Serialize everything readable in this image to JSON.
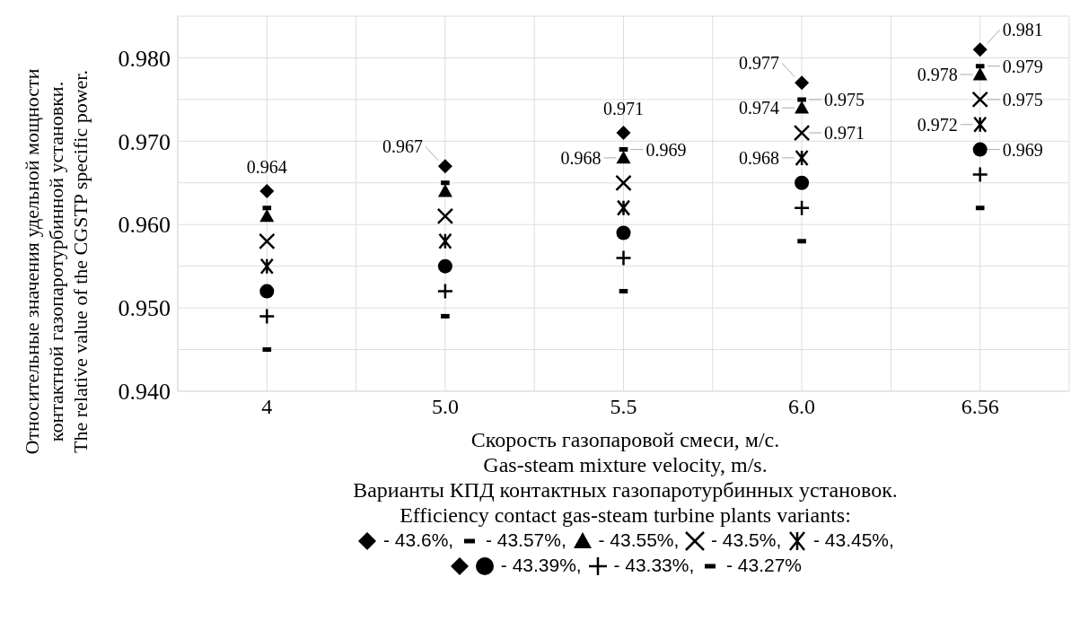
{
  "chart_data": {
    "type": "scatter",
    "ylabel": "Относительные значения удельной мощности\nконтактной газопаротурбинной установки.\nThe relative value of the CGSTP specific power.",
    "xlabel": "Скорость газопаровой смеси, м/с.\nGas-steam mixture velocity, m/s.",
    "legend_title": "Варианты КПД контактных газопаротурбинных установок.\nEfficiency contact gas-steam turbine plants variants:",
    "categories": [
      "4",
      "5.0",
      "5.5",
      "6.0",
      "6.56"
    ],
    "ylim": [
      0.94,
      0.985
    ],
    "yticks": [
      {
        "value": 0.94,
        "label": "0.940"
      },
      {
        "value": 0.945,
        "label": null
      },
      {
        "value": 0.95,
        "label": "0.950"
      },
      {
        "value": 0.955,
        "label": null
      },
      {
        "value": 0.96,
        "label": "0.960"
      },
      {
        "value": 0.965,
        "label": null
      },
      {
        "value": 0.97,
        "label": "0.970"
      },
      {
        "value": 0.975,
        "label": null
      },
      {
        "value": 0.98,
        "label": "0.980"
      },
      {
        "value": 0.985,
        "label": null
      }
    ],
    "grid": true,
    "legend": "bottom",
    "series": [
      {
        "name": "- 43.6%,",
        "color": "#000000",
        "marker": "diamond",
        "values": [
          0.964,
          0.967,
          0.971,
          0.977,
          0.981
        ],
        "value_labels": [
          "0.964",
          "0.967",
          "0.971",
          "0.977",
          "0.981"
        ]
      },
      {
        "name": "- 43.57%,",
        "color": "#000000",
        "marker": "square",
        "values": [
          0.962,
          0.965,
          0.969,
          0.975,
          0.979
        ],
        "value_labels": [
          null,
          null,
          "0.969",
          "0.975",
          "0.979"
        ]
      },
      {
        "name": "- 43.55%,",
        "color": "#000000",
        "marker": "triangle",
        "values": [
          0.961,
          0.964,
          0.968,
          0.974,
          0.978
        ],
        "value_labels": [
          null,
          null,
          "0.968",
          "0.974",
          "0.978"
        ]
      },
      {
        "name": "- 43.5%,",
        "color": "#000000",
        "marker": "x",
        "values": [
          0.958,
          0.961,
          0.965,
          0.971,
          0.975
        ],
        "value_labels": [
          null,
          null,
          null,
          "0.971",
          "0.975"
        ]
      },
      {
        "name": "- 43.45%,",
        "color": "#000000",
        "marker": "cross",
        "values": [
          0.955,
          0.958,
          0.962,
          0.968,
          0.972
        ],
        "value_labels": [
          null,
          null,
          null,
          "0.968",
          "0.972"
        ]
      },
      {
        "name": "- 43.39%,",
        "color": "#000000",
        "marker": "circle",
        "values": [
          0.952,
          0.955,
          0.959,
          0.965,
          0.969
        ],
        "value_labels": [
          null,
          null,
          null,
          null,
          "0.969"
        ]
      },
      {
        "name": "- 43.33%,",
        "color": "#000000",
        "marker": "cross",
        "values": [
          0.949,
          0.952,
          0.956,
          0.962,
          0.966
        ]
      },
      {
        "name": "- 43.27%",
        "color": "#000000",
        "marker": "square",
        "values": [
          0.945,
          0.949,
          0.952,
          0.958,
          0.962
        ]
      }
    ]
  }
}
